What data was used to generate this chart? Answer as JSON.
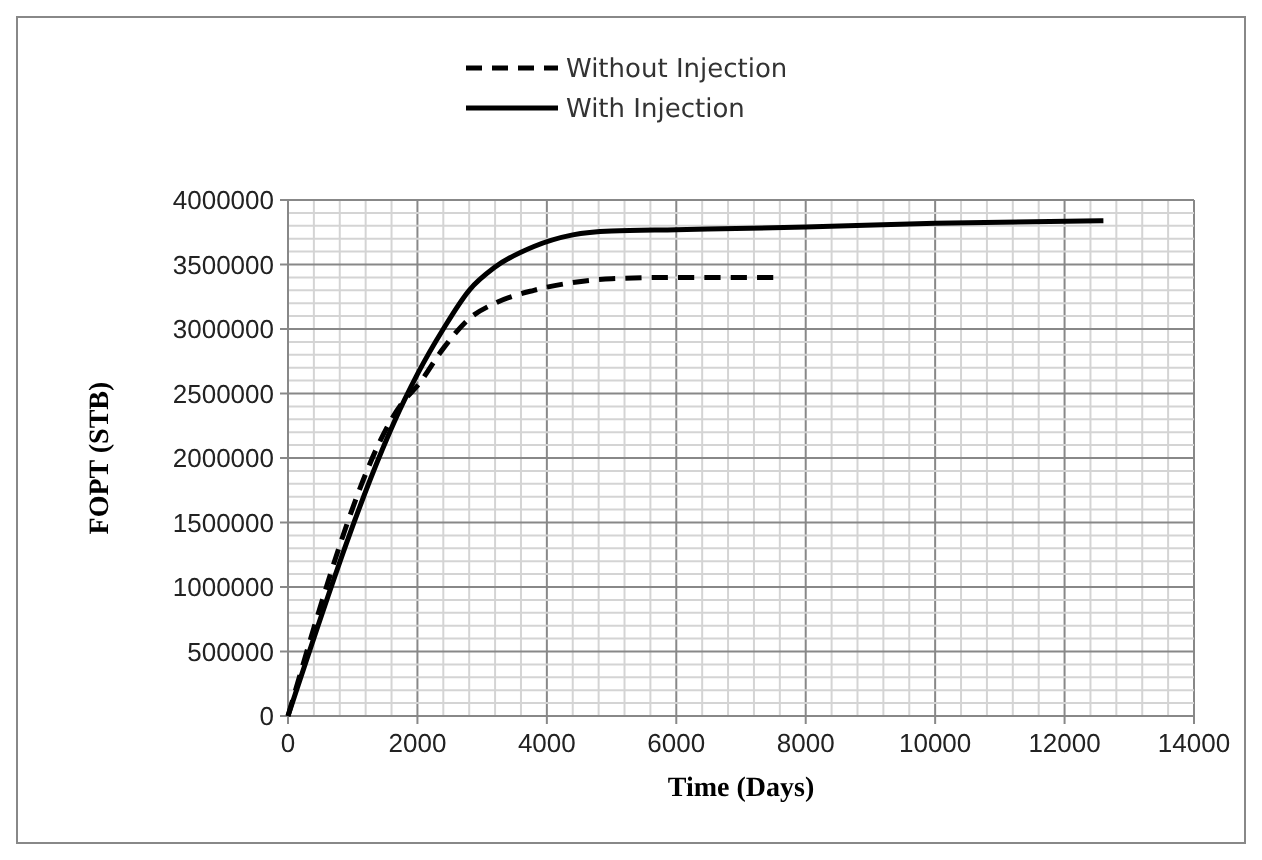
{
  "chart_data": {
    "type": "line",
    "xlabel": "Time (Days)",
    "ylabel": "FOPT (STB)",
    "xlim": [
      0,
      14000
    ],
    "xticks": [
      0,
      {
        "value": 400,
        "label": null
      },
      {
        "value": 800,
        "label": null
      },
      {
        "value": 1200,
        "label": null
      },
      {
        "value": 1600,
        "label": null
      },
      2000,
      {
        "value": 2400,
        "label": null
      },
      {
        "value": 2800,
        "label": null
      },
      {
        "value": 3200,
        "label": null
      },
      {
        "value": 3600,
        "label": null
      },
      4000,
      {
        "value": 4400,
        "label": null
      },
      {
        "value": 4800,
        "label": null
      },
      {
        "value": 5200,
        "label": null
      },
      {
        "value": 5600,
        "label": null
      },
      6000,
      {
        "value": 6400,
        "label": null
      },
      {
        "value": 6800,
        "label": null
      },
      {
        "value": 7200,
        "label": null
      },
      {
        "value": 7600,
        "label": null
      },
      8000,
      {
        "value": 8400,
        "label": null
      },
      {
        "value": 8800,
        "label": null
      },
      {
        "value": 9200,
        "label": null
      },
      {
        "value": 9600,
        "label": null
      },
      10000,
      {
        "value": 10400,
        "label": null
      },
      {
        "value": 10800,
        "label": null
      },
      {
        "value": 11200,
        "label": null
      },
      {
        "value": 11600,
        "label": null
      },
      12000,
      {
        "value": 12400,
        "label": null
      },
      {
        "value": 12800,
        "label": null
      },
      {
        "value": 13200,
        "label": null
      },
      {
        "value": 13600,
        "label": null
      },
      14000
    ],
    "ylim": [
      0,
      4000000
    ],
    "yticks": [
      0,
      {
        "value": 100000,
        "label": null
      },
      {
        "value": 200000,
        "label": null
      },
      {
        "value": 300000,
        "label": null
      },
      {
        "value": 400000,
        "label": null
      },
      500000,
      {
        "value": 600000,
        "label": null
      },
      {
        "value": 700000,
        "label": null
      },
      {
        "value": 800000,
        "label": null
      },
      {
        "value": 900000,
        "label": null
      },
      1000000,
      {
        "value": 1100000,
        "label": null
      },
      {
        "value": 1200000,
        "label": null
      },
      {
        "value": 1300000,
        "label": null
      },
      {
        "value": 1400000,
        "label": null
      },
      1500000,
      {
        "value": 1600000,
        "label": null
      },
      {
        "value": 1700000,
        "label": null
      },
      {
        "value": 1800000,
        "label": null
      },
      {
        "value": 1900000,
        "label": null
      },
      2000000,
      {
        "value": 2100000,
        "label": null
      },
      {
        "value": 2200000,
        "label": null
      },
      {
        "value": 2300000,
        "label": null
      },
      {
        "value": 2400000,
        "label": null
      },
      2500000,
      {
        "value": 2600000,
        "label": null
      },
      {
        "value": 2700000,
        "label": null
      },
      {
        "value": 2800000,
        "label": null
      },
      {
        "value": 2900000,
        "label": null
      },
      3000000,
      {
        "value": 3100000,
        "label": null
      },
      {
        "value": 3200000,
        "label": null
      },
      {
        "value": 3300000,
        "label": null
      },
      {
        "value": 3400000,
        "label": null
      },
      3500000,
      {
        "value": 3600000,
        "label": null
      },
      {
        "value": 3700000,
        "label": null
      },
      {
        "value": 3800000,
        "label": null
      },
      {
        "value": 3900000,
        "label": null
      },
      4000000
    ],
    "grid": true,
    "legend": "top",
    "marker": "none",
    "series": [
      {
        "name": "Without Injection",
        "color": "#000000",
        "line_style": "dashed",
        "x": [
          0,
          1800,
          2000,
          2400,
          2800,
          3200,
          3800,
          4400,
          5000,
          6000,
          7500
        ],
        "values": [
          0,
          2450000,
          2560000,
          2850000,
          3080000,
          3200000,
          3300000,
          3360000,
          3390000,
          3400000,
          3400000
        ]
      },
      {
        "name": "With Injection",
        "color": "#000000",
        "line_style": "solid",
        "x": [
          0,
          1800,
          2000,
          2400,
          2800,
          3200,
          3800,
          4400,
          5000,
          6000,
          8000,
          10000,
          12600
        ],
        "values": [
          0,
          2450000,
          2650000,
          3000000,
          3300000,
          3480000,
          3640000,
          3730000,
          3760000,
          3770000,
          3790000,
          3820000,
          3840000
        ]
      }
    ]
  }
}
